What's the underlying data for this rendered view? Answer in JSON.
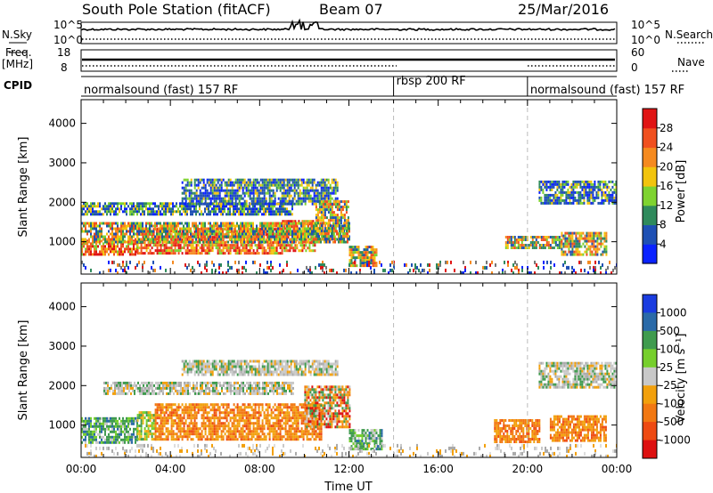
{
  "header": {
    "station": "South Pole Station (fitACF)",
    "beam": "Beam 07",
    "date": "25/Mar/2016"
  },
  "side_labels": {
    "nsky": "N.Sky",
    "nsearch": "N.Search",
    "freq": "Freq.",
    "freq_unit": "[MHz]",
    "nave": "Nave",
    "cpid": "CPID"
  },
  "chart_data": [
    {
      "type": "line",
      "panel": "noise",
      "y_left_ticks": [
        "10^5",
        "10^0"
      ],
      "y_right_ticks": [
        "10^5",
        "10^0"
      ],
      "series": [
        {
          "name": "N.Sky",
          "style": "solid"
        },
        {
          "name": "N.Search",
          "style": "dotted"
        }
      ]
    },
    {
      "type": "line",
      "panel": "frequency",
      "y_left_ticks": [
        "18",
        "8"
      ],
      "y_right_ticks": [
        "60",
        "0"
      ],
      "series": [
        {
          "name": "Freq.",
          "style": "solid"
        },
        {
          "name": "Nave",
          "style": "dotted"
        }
      ]
    },
    {
      "type": "table",
      "panel": "cpid",
      "segments": [
        {
          "label": "normalsound (fast) 157 RF",
          "start_hour": 0,
          "end_hour": 14
        },
        {
          "label": "rbsp 200 RF",
          "start_hour": 14,
          "end_hour": 20
        },
        {
          "label": "normalsound (fast) 157 RF",
          "start_hour": 20,
          "end_hour": 24
        }
      ]
    },
    {
      "type": "heatmap",
      "panel": "power",
      "ylabel": "Slant Range [km]",
      "ylim": [
        180,
        4600
      ],
      "y_ticks": [
        1000,
        2000,
        3000,
        4000
      ],
      "colorbar": {
        "label": "Power [dB]",
        "ticks": [
          "4",
          "8",
          "12",
          "16",
          "20",
          "24",
          "28"
        ],
        "colors": [
          "#0a22ff",
          "#1e50b4",
          "#2f8a5c",
          "#7ed330",
          "#f2c40d",
          "#f58a1f",
          "#f0501f",
          "#e01414"
        ]
      },
      "bands": [
        {
          "t0": 0.0,
          "t1": 2.5,
          "r0": 700,
          "r1": 1050,
          "level": "high"
        },
        {
          "t0": 2.5,
          "t1": 9.0,
          "r0": 700,
          "r1": 1350,
          "level": "high"
        },
        {
          "t0": 9.0,
          "t1": 10.5,
          "r0": 800,
          "r1": 1550,
          "level": "high"
        },
        {
          "t0": 0.0,
          "t1": 12.0,
          "r0": 1000,
          "r1": 1500,
          "level": "mid"
        },
        {
          "t0": 0.0,
          "t1": 9.5,
          "r0": 1700,
          "r1": 2000,
          "level": "low"
        },
        {
          "t0": 4.5,
          "t1": 11.5,
          "r0": 1950,
          "r1": 2600,
          "level": "low"
        },
        {
          "t0": 10.5,
          "t1": 12.0,
          "r0": 1100,
          "r1": 2050,
          "level": "mid"
        },
        {
          "t0": 12.0,
          "t1": 13.2,
          "r0": 400,
          "r1": 900,
          "level": "mid"
        },
        {
          "t0": 19.0,
          "t1": 21.5,
          "r0": 850,
          "r1": 1150,
          "level": "mid"
        },
        {
          "t0": 20.5,
          "t1": 24.0,
          "r0": 1950,
          "r1": 2550,
          "level": "low"
        },
        {
          "t0": 21.5,
          "t1": 23.5,
          "r0": 650,
          "r1": 1250,
          "level": "mid"
        },
        {
          "t0": 0.0,
          "t1": 24.0,
          "r0": 180,
          "r1": 520,
          "level": "noise"
        }
      ]
    },
    {
      "type": "heatmap",
      "panel": "velocity",
      "xlabel": "Time UT",
      "ylabel": "Slant Range [km]",
      "ylim": [
        180,
        4600
      ],
      "y_ticks": [
        1000,
        2000,
        3000,
        4000
      ],
      "x_ticks": [
        "00:00",
        "04:00",
        "08:00",
        "12:00",
        "16:00",
        "20:00",
        "00:00"
      ],
      "colorbar": {
        "label": "Velocity [m s⁻¹]",
        "ticks": [
          "1000",
          "500",
          "100",
          "25",
          "-25",
          "-100",
          "-500",
          "-1000"
        ],
        "colors": [
          "#1a3ce0",
          "#2a6aa8",
          "#3f9b4e",
          "#76cf2c",
          "#c8c8c8",
          "#f2a00c",
          "#f27812",
          "#ee4a12",
          "#dd1010"
        ]
      },
      "bands": [
        {
          "t0": 0.0,
          "t1": 2.5,
          "r0": 550,
          "r1": 1200,
          "level": "green"
        },
        {
          "t0": 2.5,
          "t1": 3.3,
          "r0": 650,
          "r1": 1350,
          "level": "yellow"
        },
        {
          "t0": 3.3,
          "t1": 10.8,
          "r0": 650,
          "r1": 1550,
          "level": "orange"
        },
        {
          "t0": 10.0,
          "t1": 12.0,
          "r0": 950,
          "r1": 2000,
          "level": "mixed"
        },
        {
          "t0": 1.0,
          "t1": 9.5,
          "r0": 1800,
          "r1": 2100,
          "level": "grey"
        },
        {
          "t0": 4.5,
          "t1": 11.5,
          "r0": 2250,
          "r1": 2650,
          "level": "grey"
        },
        {
          "t0": 12.0,
          "t1": 13.5,
          "r0": 400,
          "r1": 900,
          "level": "green"
        },
        {
          "t0": 18.5,
          "t1": 20.5,
          "r0": 550,
          "r1": 1150,
          "level": "orange"
        },
        {
          "t0": 20.5,
          "t1": 24.0,
          "r0": 1950,
          "r1": 2600,
          "level": "grey"
        },
        {
          "t0": 21.0,
          "t1": 23.5,
          "r0": 600,
          "r1": 1250,
          "level": "orange"
        },
        {
          "t0": 0.0,
          "t1": 24.0,
          "r0": 180,
          "r1": 520,
          "level": "noise"
        }
      ]
    }
  ]
}
